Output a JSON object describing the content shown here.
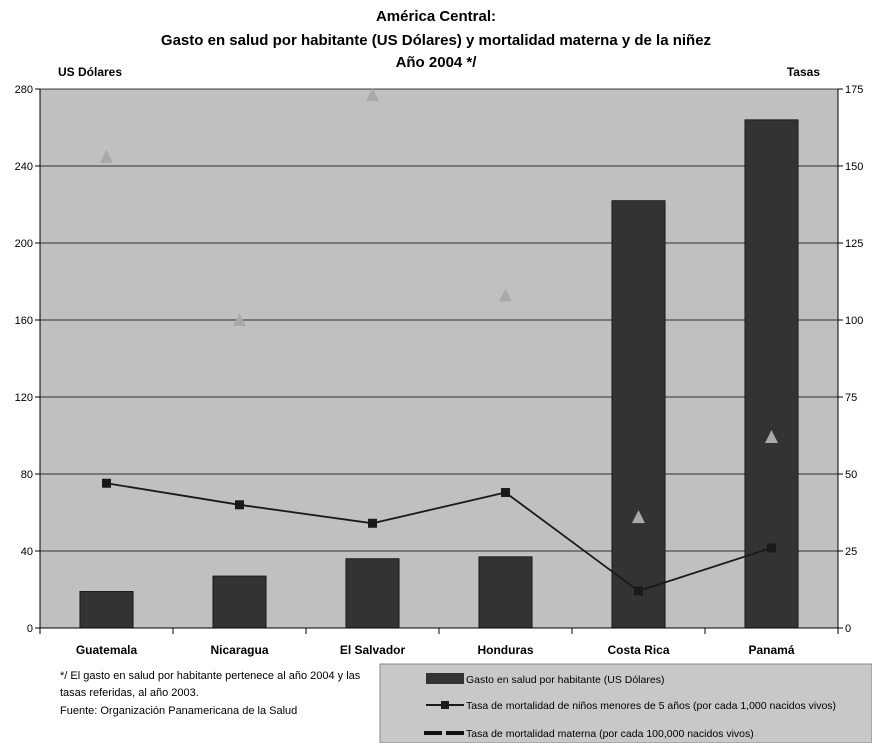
{
  "chart_data": {
    "type": "bar",
    "title_lines": [
      "América Central:",
      "Gasto en salud por habitante (US Dólares) y mortalidad materna y de la niñez",
      "Año 2004 */"
    ],
    "ylabel_left": "US Dólares",
    "ylabel_right": "Tasas",
    "categories": [
      "Guatemala",
      "Nicaragua",
      "El Salvador",
      "Honduras",
      "Costa Rica",
      "Panamá"
    ],
    "ylim_left": [
      0,
      280
    ],
    "yticks_left": [
      0,
      40,
      80,
      120,
      160,
      200,
      240,
      280
    ],
    "ylim_right": [
      0,
      175
    ],
    "yticks_right": [
      0,
      25,
      50,
      75,
      100,
      125,
      150,
      175
    ],
    "series": [
      {
        "name": "Gasto en salud por habitante (US Dólares)",
        "kind": "bar",
        "axis": "left",
        "values": [
          19,
          27,
          36,
          37,
          222,
          264
        ]
      },
      {
        "name": "Tasa de mortalidad de niños menores de 5 años (por cada 1,000 nacidos vivos)",
        "kind": "line",
        "axis": "right",
        "values": [
          47,
          40,
          34,
          44,
          12,
          26
        ]
      },
      {
        "name": "Tasa de mortalidad materna (por cada 100,000 nacidos vivos)",
        "kind": "triangle",
        "axis": "right",
        "values": [
          153,
          100,
          173,
          108,
          36,
          62
        ]
      }
    ],
    "notes": [
      "*/ El gasto en salud por habitante pertenece al año 2004 y las",
      "tasas referidas, al año 2003.",
      "Fuente: Organización Panamericana de la Salud"
    ],
    "legend_position": "bottom-right",
    "grid": true,
    "colors": {
      "plot_bg": "#c0c0c0",
      "bar": "#333333",
      "line": "#1a1a1a",
      "triangle": "#a9a9a9",
      "legend_bg": "#c8c8c8"
    }
  }
}
